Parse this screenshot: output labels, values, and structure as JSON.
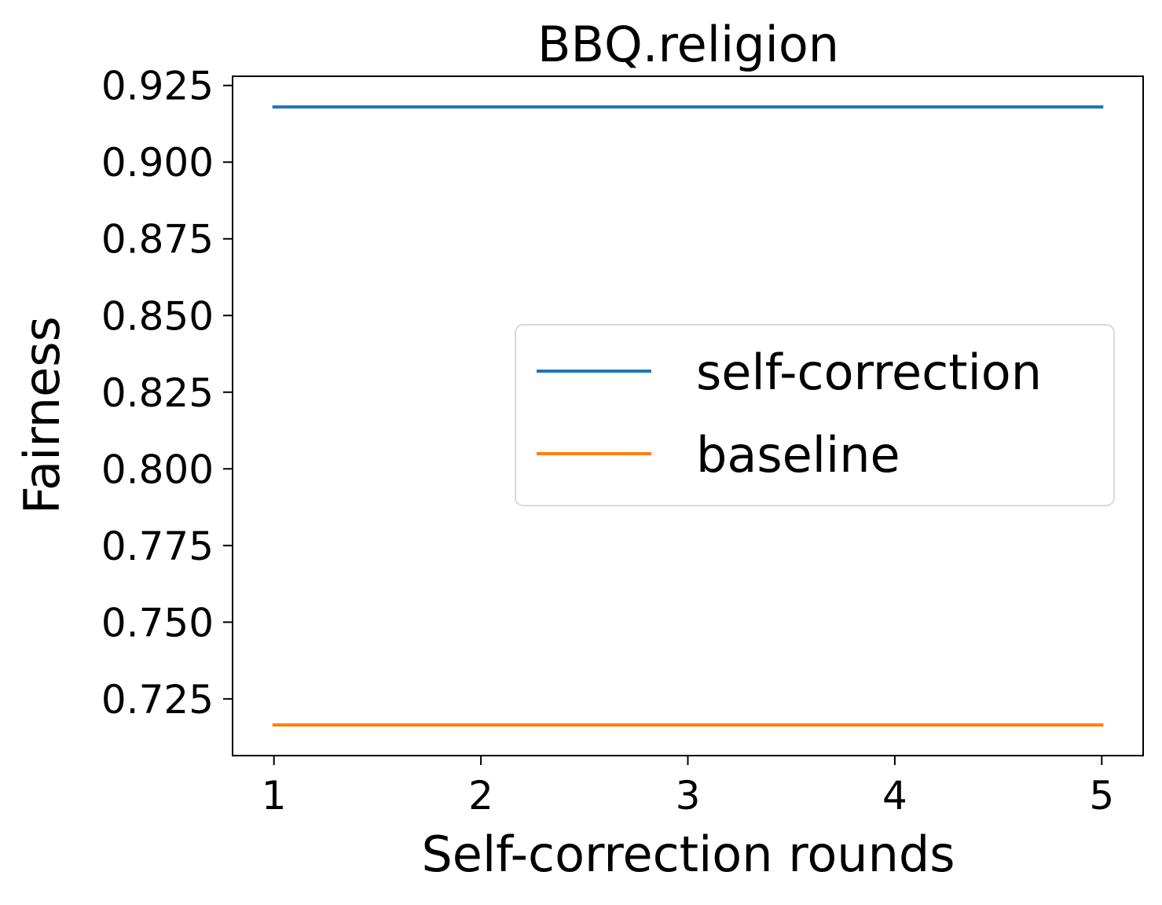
{
  "chart_data": {
    "type": "line",
    "title": "BBQ.religion",
    "xlabel": "Self-correction rounds",
    "ylabel": "Fairness",
    "x": [
      1,
      2,
      3,
      4,
      5
    ],
    "x_ticks": [
      "1",
      "2",
      "3",
      "4",
      "5"
    ],
    "y_ticks": [
      "0.725",
      "0.750",
      "0.775",
      "0.800",
      "0.825",
      "0.850",
      "0.875",
      "0.900",
      "0.925"
    ],
    "xlim": [
      0.8,
      5.2
    ],
    "ylim": [
      0.7065,
      0.928
    ],
    "grid": false,
    "legend_position": "center-right",
    "series": [
      {
        "name": "self-correction",
        "color": "#1f77b4",
        "values": [
          0.918,
          0.918,
          0.918,
          0.918,
          0.918
        ]
      },
      {
        "name": "baseline",
        "color": "#ff7f0e",
        "values": [
          0.7165,
          0.7165,
          0.7165,
          0.7165,
          0.7165
        ]
      }
    ]
  }
}
